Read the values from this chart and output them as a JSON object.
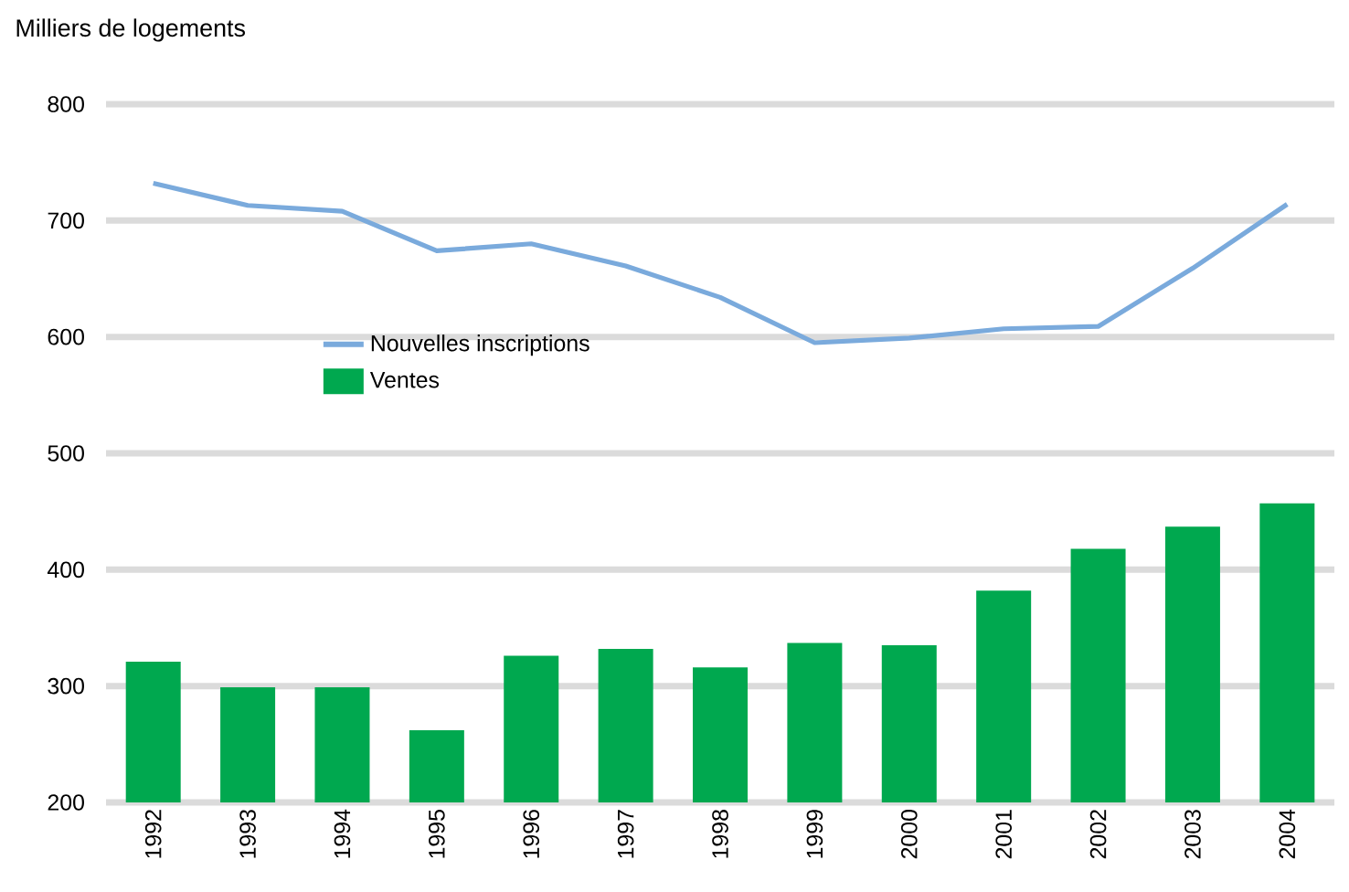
{
  "chart_data": {
    "type": "bar",
    "ylabel": "Milliers de logements",
    "categories": [
      "1992",
      "1993",
      "1994",
      "1995",
      "1996",
      "1997",
      "1998",
      "1999",
      "2000",
      "2001",
      "2002",
      "2003",
      "2004"
    ],
    "series": [
      {
        "name": "Nouvelles inscriptions",
        "type": "line",
        "color": "#7aaadc",
        "values": [
          732,
          713,
          708,
          674,
          680,
          661,
          634,
          595,
          599,
          607,
          609,
          659,
          714
        ]
      },
      {
        "name": "Ventes",
        "color": "#00a84f",
        "values": [
          321,
          299,
          299,
          262,
          326,
          332,
          316,
          337,
          335,
          382,
          418,
          437,
          457
        ]
      }
    ],
    "ylim": [
      200,
      800
    ],
    "yticks": [
      200,
      300,
      400,
      500,
      600,
      700,
      800
    ],
    "grid": "y",
    "legend": "left",
    "marker": "none",
    "line_style": "solid"
  }
}
